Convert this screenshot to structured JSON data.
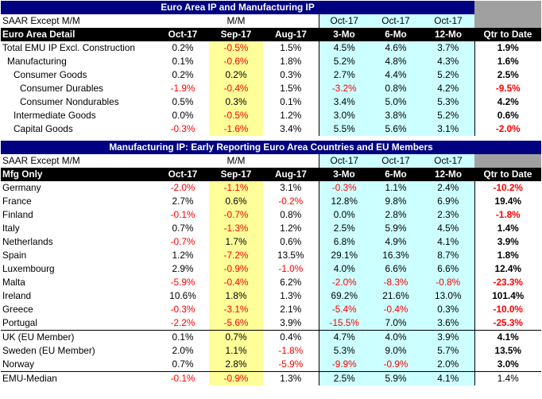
{
  "top": {
    "title": "Euro Area IP and Manufacturing IP",
    "sub": {
      "label": "SAAR Except M/M",
      "mm": "M/M",
      "h3": "Oct-17",
      "h6": "Oct-17",
      "h12": "Oct-17"
    },
    "header": {
      "label": "Euro Area Detail",
      "c1": "Oct-17",
      "c2": "Sep-17",
      "c3": "Aug-17",
      "c4": "3-Mo",
      "c5": "6-Mo",
      "c6": "12-Mo",
      "c7": "Qtr to Date"
    },
    "rows": [
      {
        "label": "Total EMU IP Excl. Construction",
        "indent": 0,
        "v": [
          "0.2%",
          "-0.5%",
          "1.5%",
          "4.5%",
          "4.6%",
          "3.7%",
          "1.9%"
        ]
      },
      {
        "label": "Manufacturing",
        "indent": 1,
        "v": [
          "0.1%",
          "-0.6%",
          "1.8%",
          "5.2%",
          "4.8%",
          "4.3%",
          "1.6%"
        ]
      },
      {
        "label": "Consumer Goods",
        "indent": 2,
        "v": [
          "0.2%",
          "0.2%",
          "0.3%",
          "2.7%",
          "4.4%",
          "5.2%",
          "2.5%"
        ]
      },
      {
        "label": "Consumer Durables",
        "indent": 3,
        "v": [
          "-1.9%",
          "-0.4%",
          "1.5%",
          "-3.2%",
          "0.8%",
          "4.2%",
          "-9.5%"
        ]
      },
      {
        "label": "Consumer Nondurables",
        "indent": 3,
        "v": [
          "0.5%",
          "0.3%",
          "0.1%",
          "3.4%",
          "5.0%",
          "5.3%",
          "4.2%"
        ]
      },
      {
        "label": "Intermediate Goods",
        "indent": 2,
        "v": [
          "0.0%",
          "-0.5%",
          "1.2%",
          "3.0%",
          "3.8%",
          "5.2%",
          "0.6%"
        ]
      },
      {
        "label": "Capital Goods",
        "indent": 2,
        "v": [
          "-0.3%",
          "-1.6%",
          "3.4%",
          "5.5%",
          "5.6%",
          "3.1%",
          "-2.0%"
        ]
      }
    ]
  },
  "bottom": {
    "title": "Manufacturing IP: Early Reporting Euro Area Countries and EU Members",
    "sub": {
      "label": "SAAR Except M/M",
      "mm": "M/M",
      "h3": "Oct-17",
      "h6": "Oct-17",
      "h12": "Oct-17"
    },
    "header": {
      "label": "Mfg Only",
      "c1": "Oct-17",
      "c2": "Sep-17",
      "c3": "Aug-17",
      "c4": "3-Mo",
      "c5": "6-Mo",
      "c6": "12-Mo",
      "c7": "Qtr to Date"
    },
    "rows": [
      {
        "label": "Germany",
        "v": [
          "-2.0%",
          "-1.1%",
          "3.1%",
          "-0.3%",
          "1.1%",
          "2.4%",
          "-10.2%"
        ]
      },
      {
        "label": "France",
        "v": [
          "2.7%",
          "0.6%",
          "-0.2%",
          "12.8%",
          "9.8%",
          "6.9%",
          "19.4%"
        ]
      },
      {
        "label": "Finland",
        "v": [
          "-0.1%",
          "-0.7%",
          "0.8%",
          "0.0%",
          "2.8%",
          "2.3%",
          "-1.8%"
        ]
      },
      {
        "label": "Italy",
        "v": [
          "0.7%",
          "-1.3%",
          "1.2%",
          "2.5%",
          "5.9%",
          "4.5%",
          "1.4%"
        ]
      },
      {
        "label": "Netherlands",
        "v": [
          "-0.7%",
          "1.7%",
          "0.6%",
          "6.8%",
          "4.9%",
          "4.1%",
          "3.9%"
        ]
      },
      {
        "label": "Spain",
        "v": [
          "1.2%",
          "-7.2%",
          "13.5%",
          "29.1%",
          "16.3%",
          "8.7%",
          "1.8%"
        ]
      },
      {
        "label": "Luxembourg",
        "v": [
          "2.9%",
          "-0.9%",
          "-1.0%",
          "4.0%",
          "6.6%",
          "6.6%",
          "12.4%"
        ]
      },
      {
        "label": "Malta",
        "v": [
          "-5.9%",
          "-0.4%",
          "6.2%",
          "-2.0%",
          "-8.3%",
          "-0.8%",
          "-23.3%"
        ]
      },
      {
        "label": "Ireland",
        "v": [
          "10.6%",
          "1.8%",
          "1.3%",
          "69.2%",
          "21.6%",
          "13.0%",
          "101.4%"
        ]
      },
      {
        "label": "Greece",
        "v": [
          "-0.3%",
          "-3.1%",
          "2.1%",
          "-5.4%",
          "-0.4%",
          "0.3%",
          "-10.0%"
        ]
      },
      {
        "label": "Portugal",
        "v": [
          "-2.2%",
          "-5.6%",
          "3.9%",
          "-15.5%",
          "7.0%",
          "3.6%",
          "-25.3%"
        ]
      }
    ],
    "eu_rows": [
      {
        "label": "UK (EU Member)",
        "v": [
          "0.1%",
          "0.7%",
          "0.4%",
          "4.7%",
          "4.0%",
          "3.9%",
          "4.1%"
        ]
      },
      {
        "label": "Sweden (EU Member)",
        "v": [
          "2.0%",
          "1.1%",
          "-1.8%",
          "5.3%",
          "9.0%",
          "5.7%",
          "13.5%"
        ]
      },
      {
        "label": "Norway",
        "v": [
          "0.7%",
          "2.8%",
          "-5.9%",
          "-9.9%",
          "-0.9%",
          "2.0%",
          "3.0%"
        ]
      }
    ],
    "median_row": {
      "label": "EMU-Median",
      "v": [
        "-0.1%",
        "-0.9%",
        "1.3%",
        "2.5%",
        "5.9%",
        "4.1%",
        "1.4%"
      ]
    }
  },
  "colors": {
    "title_bg": "#000080",
    "header_bg": "#000000",
    "neg": "#ff0000",
    "highlight_yellow": "#ffff99",
    "highlight_cyan": "#ccffff",
    "gray": "#a0a0a0"
  }
}
